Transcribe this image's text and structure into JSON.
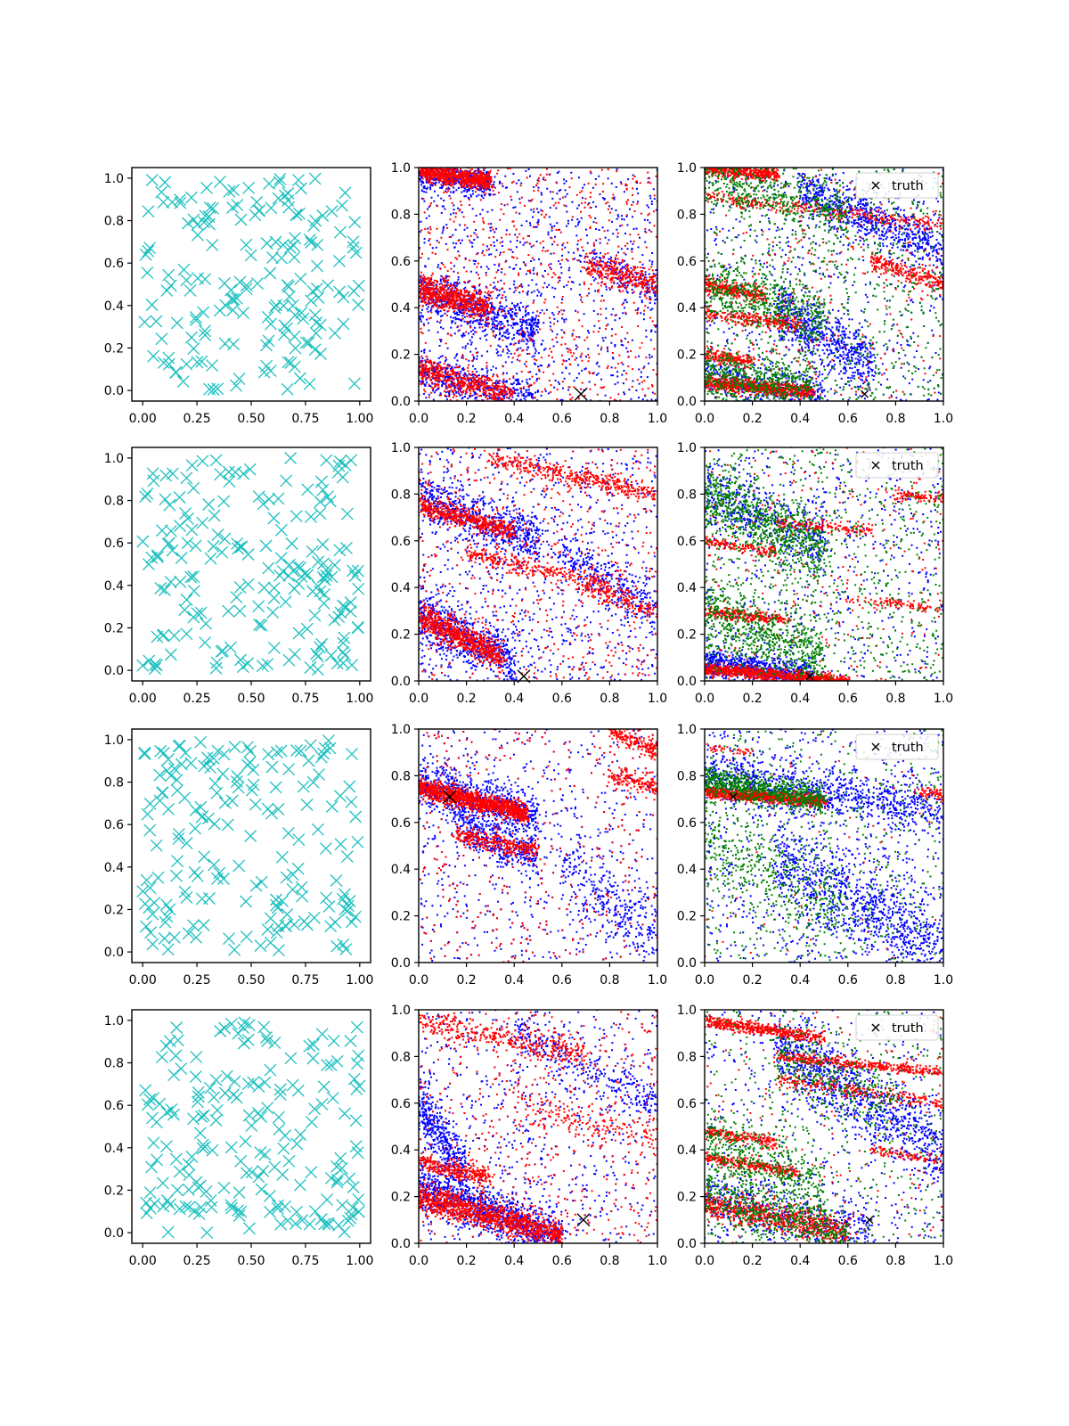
{
  "figure": {
    "grid_rows": 4,
    "grid_cols": 3,
    "colors": {
      "candidates": "#1dbfbf",
      "blue": "#0000ff",
      "red": "#ff0000",
      "green": "#008000",
      "truth": "#000000"
    }
  },
  "chart_data": [
    {
      "panel": "r1c1",
      "type": "scatter",
      "marker": "x",
      "color": "#1dbfbf",
      "n_points": 180,
      "xlim": [
        -0.05,
        1.05
      ],
      "ylim": [
        -0.05,
        1.05
      ],
      "xticks": [
        "0.00",
        "0.25",
        "0.50",
        "0.75",
        "1.00"
      ],
      "yticks": [
        "0.0",
        "0.2",
        "0.4",
        "0.6",
        "0.8",
        "1.0"
      ]
    },
    {
      "panel": "r1c2",
      "type": "scatter",
      "xlim": [
        0,
        1
      ],
      "ylim": [
        0,
        1
      ],
      "xticks": [
        "0.0",
        "0.2",
        "0.4",
        "0.6",
        "0.8",
        "1.0"
      ],
      "yticks": [
        "0.0",
        "0.2",
        "0.4",
        "0.6",
        "0.8",
        "1.0"
      ],
      "truth": [
        0.68,
        0.03
      ],
      "series": [
        {
          "color": "#0000ff",
          "bands": [
            [
              0,
              0.97,
              0.3,
              0.93,
              0.03,
              400
            ],
            [
              0,
              0.47,
              0.5,
              0.3,
              0.05,
              700
            ],
            [
              0,
              0.13,
              0.5,
              0,
              0.04,
              500
            ],
            [
              0.7,
              0.6,
              1,
              0.48,
              0.04,
              150
            ]
          ],
          "noise": 900
        },
        {
          "color": "#ff0000",
          "bands": [
            [
              0,
              0.99,
              0.3,
              0.94,
              0.02,
              700
            ],
            [
              0,
              0.48,
              0.3,
              0.4,
              0.03,
              600
            ],
            [
              0,
              0.14,
              0.4,
              0.01,
              0.03,
              500
            ],
            [
              0.7,
              0.58,
              1,
              0.5,
              0.03,
              300
            ]
          ],
          "noise": 700
        }
      ]
    },
    {
      "panel": "r1c3",
      "type": "scatter",
      "xlim": [
        0,
        1
      ],
      "ylim": [
        0,
        1
      ],
      "xticks": [
        "0.0",
        "0.2",
        "0.4",
        "0.6",
        "0.8",
        "1.0"
      ],
      "yticks": [
        "0.0",
        "0.2",
        "0.4",
        "0.6",
        "0.8",
        "1.0"
      ],
      "truth": [
        0.67,
        0.03
      ],
      "legend": {
        "label": "truth",
        "loc": "upper right"
      },
      "series": [
        {
          "color": "#0000ff",
          "bands": [
            [
              0.4,
              0.9,
              1,
              0.65,
              0.05,
              700
            ],
            [
              0.3,
              0.4,
              0.7,
              0.15,
              0.06,
              600
            ],
            [
              0,
              0.1,
              0.5,
              0.03,
              0.04,
              400
            ]
          ],
          "noise": 900
        },
        {
          "color": "#ff0000",
          "bands": [
            [
              0,
              1.0,
              0.3,
              0.97,
              0.015,
              500
            ],
            [
              0,
              0.88,
              1,
              0.75,
              0.015,
              300
            ],
            [
              0,
              0.5,
              0.25,
              0.45,
              0.015,
              300
            ],
            [
              0,
              0.37,
              0.4,
              0.33,
              0.015,
              250
            ],
            [
              0,
              0.2,
              0.2,
              0.17,
              0.015,
              200
            ],
            [
              0,
              0.08,
              0.45,
              0.04,
              0.015,
              700
            ],
            [
              0.7,
              0.6,
              1,
              0.5,
              0.02,
              250
            ]
          ],
          "noise": 300
        },
        {
          "color": "#008000",
          "bands": [
            [
              0,
              0.5,
              0.5,
              0.35,
              0.06,
              500
            ],
            [
              0,
              0.12,
              0.45,
              0.06,
              0.05,
              500
            ],
            [
              0,
              0.95,
              0.6,
              0.8,
              0.05,
              400
            ]
          ],
          "noise": 800
        }
      ]
    },
    {
      "panel": "r2c1",
      "type": "scatter",
      "marker": "x",
      "color": "#1dbfbf",
      "n_points": 190,
      "xlim": [
        -0.05,
        1.05
      ],
      "ylim": [
        -0.05,
        1.05
      ],
      "xticks": [
        "0.00",
        "0.25",
        "0.50",
        "0.75",
        "1.00"
      ],
      "yticks": [
        "0.0",
        "0.2",
        "0.4",
        "0.6",
        "0.8",
        "1.0"
      ]
    },
    {
      "panel": "r2c2",
      "type": "scatter",
      "xlim": [
        0,
        1
      ],
      "ylim": [
        0,
        1
      ],
      "xticks": [
        "0.0",
        "0.2",
        "0.4",
        "0.6",
        "0.8",
        "1.0"
      ],
      "yticks": [
        "0.0",
        "0.2",
        "0.4",
        "0.6",
        "0.8",
        "1.0"
      ],
      "truth": [
        0.44,
        0.02
      ],
      "series": [
        {
          "color": "#0000ff",
          "bands": [
            [
              0,
              0.8,
              0.5,
              0.6,
              0.05,
              600
            ],
            [
              0,
              0.28,
              0.4,
              0.08,
              0.06,
              700
            ],
            [
              0.6,
              0.55,
              1,
              0.3,
              0.05,
              300
            ]
          ],
          "noise": 900
        },
        {
          "color": "#ff0000",
          "bands": [
            [
              0,
              0.75,
              0.4,
              0.64,
              0.02,
              500
            ],
            [
              0,
              0.28,
              0.35,
              0.1,
              0.03,
              700
            ],
            [
              0.2,
              0.55,
              0.8,
              0.4,
              0.02,
              300
            ],
            [
              0.3,
              0.95,
              1,
              0.8,
              0.02,
              400
            ],
            [
              0.7,
              0.4,
              1,
              0.3,
              0.02,
              150
            ]
          ],
          "noise": 600
        }
      ]
    },
    {
      "panel": "r2c3",
      "type": "scatter",
      "xlim": [
        0,
        1
      ],
      "ylim": [
        0,
        1
      ],
      "xticks": [
        "0.0",
        "0.2",
        "0.4",
        "0.6",
        "0.8",
        "1.0"
      ],
      "yticks": [
        "0.0",
        "0.2",
        "0.4",
        "0.6",
        "0.8",
        "1.0"
      ],
      "truth": [
        0.44,
        0.02
      ],
      "legend": {
        "label": "truth",
        "loc": "upper right"
      },
      "series": [
        {
          "color": "#0000ff",
          "bands": [
            [
              0,
              0.08,
              0.45,
              0.02,
              0.03,
              700
            ],
            [
              0,
              0.8,
              0.5,
              0.6,
              0.06,
              400
            ]
          ],
          "noise": 600
        },
        {
          "color": "#ff0000",
          "bands": [
            [
              0,
              0.05,
              0.6,
              0,
              0.012,
              900
            ],
            [
              0,
              0.3,
              0.35,
              0.26,
              0.012,
              250
            ],
            [
              0,
              0.6,
              0.3,
              0.55,
              0.012,
              150
            ],
            [
              0.3,
              0.68,
              0.7,
              0.64,
              0.012,
              150
            ],
            [
              0.8,
              0.8,
              1,
              0.78,
              0.012,
              100
            ],
            [
              0.6,
              0.35,
              1,
              0.31,
              0.012,
              100
            ]
          ],
          "noise": 250
        },
        {
          "color": "#008000",
          "bands": [
            [
              0,
              0.8,
              0.5,
              0.55,
              0.07,
              700
            ],
            [
              0,
              0.3,
              0.5,
              0.1,
              0.07,
              600
            ]
          ],
          "noise": 800
        }
      ]
    },
    {
      "panel": "r3c1",
      "type": "scatter",
      "marker": "x",
      "color": "#1dbfbf",
      "n_points": 180,
      "xlim": [
        -0.05,
        1.05
      ],
      "ylim": [
        -0.05,
        1.05
      ],
      "xticks": [
        "0.00",
        "0.25",
        "0.50",
        "0.75",
        "1.00"
      ],
      "yticks": [
        "0.0",
        "0.2",
        "0.4",
        "0.6",
        "0.8",
        "1.0"
      ]
    },
    {
      "panel": "r3c2",
      "type": "scatter",
      "xlim": [
        0,
        1
      ],
      "ylim": [
        0,
        1
      ],
      "xticks": [
        "0.0",
        "0.2",
        "0.4",
        "0.6",
        "0.8",
        "1.0"
      ],
      "yticks": [
        "0.0",
        "0.2",
        "0.4",
        "0.6",
        "0.8",
        "1.0"
      ],
      "truth": [
        0.13,
        0.71
      ],
      "series": [
        {
          "color": "#0000ff",
          "bands": [
            [
              0,
              0.77,
              0.5,
              0.62,
              0.05,
              700
            ],
            [
              0.15,
              0.6,
              0.5,
              0.45,
              0.05,
              400
            ],
            [
              0.6,
              0.4,
              1,
              0.1,
              0.08,
              300
            ]
          ],
          "noise": 900
        },
        {
          "color": "#ff0000",
          "bands": [
            [
              0,
              0.75,
              0.45,
              0.64,
              0.02,
              1200
            ],
            [
              0.15,
              0.55,
              0.5,
              0.48,
              0.02,
              300
            ],
            [
              0.8,
              1.0,
              1,
              0.9,
              0.02,
              200
            ],
            [
              0.8,
              0.8,
              1,
              0.75,
              0.02,
              150
            ]
          ],
          "noise": 400
        }
      ]
    },
    {
      "panel": "r3c3",
      "type": "scatter",
      "xlim": [
        0,
        1
      ],
      "ylim": [
        0,
        1
      ],
      "xticks": [
        "0.0",
        "0.2",
        "0.4",
        "0.6",
        "0.8",
        "1.0"
      ],
      "yticks": [
        "0.0",
        "0.2",
        "0.4",
        "0.6",
        "0.8",
        "1.0"
      ],
      "truth": [
        0.12,
        0.71
      ],
      "legend": {
        "label": "truth",
        "loc": "upper right"
      },
      "series": [
        {
          "color": "#0000ff",
          "bands": [
            [
              0,
              0.8,
              1,
              0.65,
              0.05,
              900
            ],
            [
              0.3,
              0.45,
              1,
              0.05,
              0.09,
              900
            ]
          ],
          "noise": 700
        },
        {
          "color": "#ff0000",
          "bands": [
            [
              0,
              0.73,
              0.5,
              0.69,
              0.012,
              900
            ],
            [
              0.9,
              0.73,
              1,
              0.72,
              0.012,
              60
            ],
            [
              0,
              0.92,
              0.2,
              0.9,
              0.01,
              40
            ]
          ],
          "noise": 60
        },
        {
          "color": "#008000",
          "bands": [
            [
              0,
              0.78,
              0.5,
              0.7,
              0.03,
              700
            ],
            [
              0,
              0.5,
              0.6,
              0.2,
              0.1,
              400
            ]
          ],
          "noise": 500
        }
      ]
    },
    {
      "panel": "r4c1",
      "type": "scatter",
      "marker": "x",
      "color": "#1dbfbf",
      "n_points": 190,
      "xlim": [
        -0.05,
        1.05
      ],
      "ylim": [
        -0.05,
        1.05
      ],
      "xticks": [
        "0.00",
        "0.25",
        "0.50",
        "0.75",
        "1.00"
      ],
      "yticks": [
        "0.0",
        "0.2",
        "0.4",
        "0.6",
        "0.8",
        "1.0"
      ]
    },
    {
      "panel": "r4c2",
      "type": "scatter",
      "xlim": [
        0,
        1
      ],
      "ylim": [
        0,
        1
      ],
      "xticks": [
        "0.0",
        "0.2",
        "0.4",
        "0.6",
        "0.8",
        "1.0"
      ],
      "yticks": [
        "0.0",
        "0.2",
        "0.4",
        "0.6",
        "0.8",
        "1.0"
      ],
      "truth": [
        0.69,
        0.1
      ],
      "series": [
        {
          "color": "#0000ff",
          "bands": [
            [
              0,
              0.25,
              0.6,
              0.02,
              0.05,
              1000
            ],
            [
              0,
              0.6,
              0.2,
              0.3,
              0.06,
              400
            ],
            [
              0.4,
              0.9,
              1,
              0.6,
              0.05,
              300
            ]
          ],
          "noise": 800
        },
        {
          "color": "#ff0000",
          "bands": [
            [
              0,
              0.2,
              0.6,
              0.03,
              0.03,
              1100
            ],
            [
              0,
              0.35,
              0.3,
              0.28,
              0.02,
              300
            ],
            [
              0,
              0.95,
              0.7,
              0.8,
              0.03,
              400
            ],
            [
              0.4,
              0.6,
              1,
              0.45,
              0.04,
              200
            ]
          ],
          "noise": 500
        }
      ]
    },
    {
      "panel": "r4c3",
      "type": "scatter",
      "xlim": [
        0,
        1
      ],
      "ylim": [
        0,
        1
      ],
      "xticks": [
        "0.0",
        "0.2",
        "0.4",
        "0.6",
        "0.8",
        "1.0"
      ],
      "yticks": [
        "0.0",
        "0.2",
        "0.4",
        "0.6",
        "0.8",
        "1.0"
      ],
      "truth": [
        0.69,
        0.1
      ],
      "legend": {
        "label": "truth",
        "loc": "upper right"
      },
      "series": [
        {
          "color": "#0000ff",
          "bands": [
            [
              0.3,
              0.85,
              1,
              0.4,
              0.08,
              900
            ],
            [
              0,
              0.2,
              0.7,
              0.05,
              0.06,
              500
            ]
          ],
          "noise": 500
        },
        {
          "color": "#ff0000",
          "bands": [
            [
              0,
              0.95,
              0.5,
              0.88,
              0.012,
              500
            ],
            [
              0.3,
              0.8,
              1,
              0.73,
              0.012,
              400
            ],
            [
              0,
              0.48,
              0.3,
              0.43,
              0.012,
              200
            ],
            [
              0,
              0.37,
              0.4,
              0.3,
              0.012,
              300
            ],
            [
              0,
              0.17,
              0.6,
              0.05,
              0.03,
              700
            ],
            [
              0.3,
              0.7,
              1,
              0.6,
              0.015,
              250
            ],
            [
              0.7,
              0.4,
              1,
              0.35,
              0.012,
              100
            ]
          ],
          "noise": 200
        },
        {
          "color": "#008000",
          "bands": [
            [
              0,
              0.45,
              0.5,
              0.2,
              0.08,
              500
            ],
            [
              0,
              0.2,
              0.6,
              0.02,
              0.05,
              500
            ],
            [
              0.3,
              0.8,
              0.8,
              0.6,
              0.08,
              300
            ]
          ],
          "noise": 400
        }
      ]
    }
  ]
}
